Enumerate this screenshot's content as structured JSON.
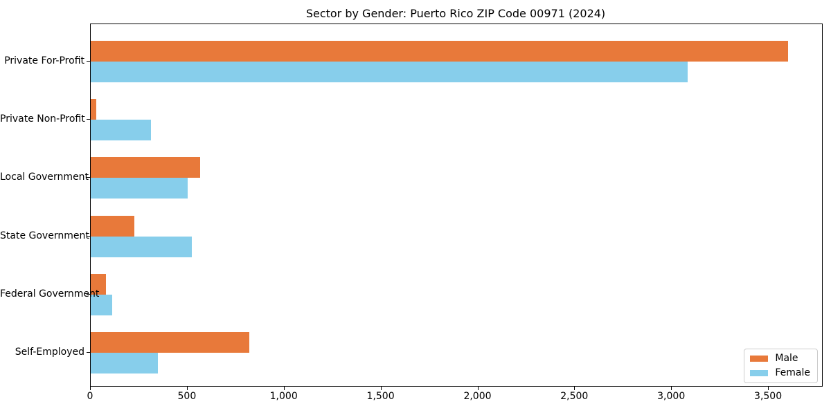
{
  "title": "Sector by Gender: Puerto Rico ZIP Code 00971 (2024)",
  "chart_data": {
    "type": "bar",
    "orientation": "horizontal",
    "title": "Sector by Gender: Puerto Rico ZIP Code 00971 (2024)",
    "categories": [
      "Private For-Profit",
      "Private Non-Profit",
      "Local Government",
      "State Government",
      "Federal Government",
      "Self-Employed"
    ],
    "series": [
      {
        "name": "Male",
        "color": "#e8793a",
        "values": [
          3600,
          30,
          565,
          225,
          80,
          820
        ]
      },
      {
        "name": "Female",
        "color": "#87ceeb",
        "values": [
          3080,
          310,
          500,
          520,
          110,
          345
        ]
      }
    ],
    "xlabel": "",
    "ylabel": "",
    "xlim": [
      0,
      3775
    ],
    "xticks": [
      0,
      500,
      1000,
      1500,
      2000,
      2500,
      3000,
      3500
    ],
    "xtick_labels": [
      "0",
      "500",
      "1,000",
      "1,500",
      "2,000",
      "2,500",
      "3,000",
      "3,500"
    ],
    "grid": false,
    "legend": {
      "position": "lower right",
      "border_color": "#cccccc"
    },
    "spine_color": "#000000"
  }
}
